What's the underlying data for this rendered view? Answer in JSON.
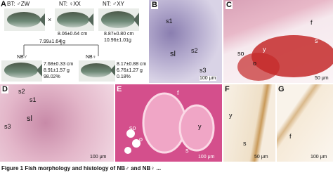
{
  "panels": {
    "a": {
      "letter": "A",
      "parents": [
        "BT: ♂ZW",
        "×",
        "NT: ♀XX",
        "NT: ♂XY"
      ],
      "stats_center": [
        "8.06±0.64 cm",
        "7.99±1.64 g"
      ],
      "stats_right": [
        "8.87±0.80 cm",
        "10.96±1.01g"
      ],
      "offspring": [
        {
          "label": "NB♂",
          "stats": [
            "7.68±0.33 cm",
            "8.91±1.57 g",
            "98.02%"
          ]
        },
        {
          "label": "NB♀",
          "stats": [
            "8.17±0.88 cm",
            "6.76±1.27 g",
            "0.18%"
          ]
        }
      ]
    },
    "b": {
      "letter": "B",
      "labels": [
        "s1",
        "s2",
        "sl",
        "s3"
      ],
      "scale": "100 μm"
    },
    "c": {
      "letter": "C",
      "labels": [
        "f",
        "so",
        "o",
        "y",
        "s"
      ],
      "scale": "50 μm"
    },
    "d": {
      "letter": "D",
      "labels": [
        "s2",
        "s1",
        "s3",
        "sl"
      ],
      "scale": "100 μm"
    },
    "e": {
      "letter": "E",
      "labels": [
        "f",
        "y",
        "so",
        "o",
        "s"
      ],
      "scale": "100 μm"
    },
    "f": {
      "letter": "F",
      "labels": [
        "y",
        "s"
      ],
      "scale": "50 μm"
    },
    "g": {
      "letter": "G",
      "labels": [
        "f"
      ],
      "scale": "100 μm"
    }
  },
  "caption": "Figure 1 Fish morphology and histology of NB♂ and NB♀ ..."
}
